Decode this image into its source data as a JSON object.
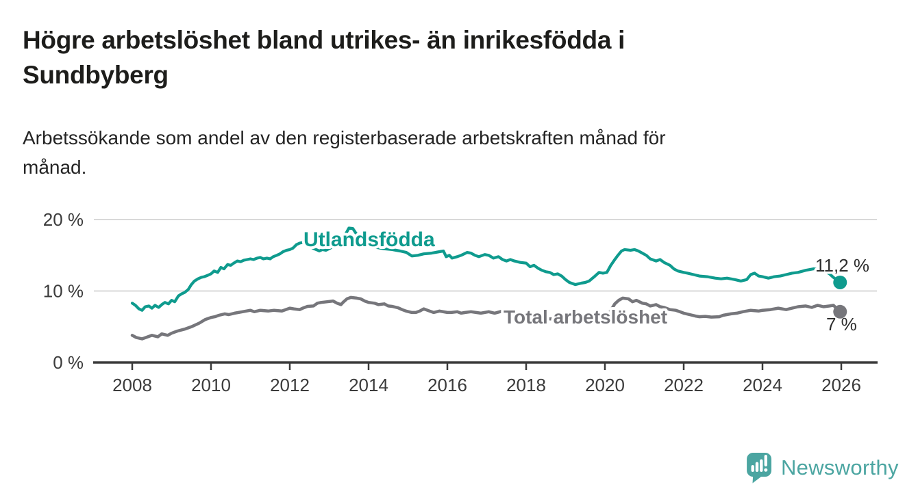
{
  "header": {
    "title_lines": [
      "Högre arbetslöshet bland utrikes- än inrikesfödda i",
      "Sundbyberg"
    ],
    "subtitle_lines": [
      "Arbetssökande som andel av den registerbaserade arbetskraften månad för",
      "månad."
    ]
  },
  "branding": {
    "wordmark": "Newsworthy",
    "logo_icon": "bar-chart-speech-bubble-icon",
    "logo_color": "#4ba5a1"
  },
  "chart_data": {
    "type": "line",
    "grid": "horizontal-only",
    "legend_position": "inline-labels-on-lines",
    "background": "#ffffff",
    "x_axis": {
      "range": [
        2007.0,
        2026.9
      ],
      "ticks": [
        2008,
        2010,
        2012,
        2014,
        2016,
        2018,
        2020,
        2022,
        2024,
        2026
      ],
      "tick_labels": [
        "2008",
        "2010",
        "2012",
        "2014",
        "2016",
        "2018",
        "2020",
        "2022",
        "2024",
        "2026"
      ],
      "axis_color": "#3b3b3b",
      "label_color": "#3b3b3b"
    },
    "y_axis": {
      "range": [
        0,
        21.5
      ],
      "unit": "%",
      "ticks": [
        20,
        10,
        0
      ],
      "tick_labels": [
        "20 %",
        "10 %",
        "0 %"
      ],
      "gridlines": [
        20,
        10
      ],
      "gridline_color": "#d9d9d9"
    },
    "series": [
      {
        "id": "total",
        "name": "Total arbetslöshet",
        "color": "#76767b",
        "end_label": "7 %",
        "end_value": 7.1,
        "points": [
          [
            2008.0,
            3.8
          ],
          [
            2008.1,
            3.5
          ],
          [
            2008.25,
            3.3
          ],
          [
            2008.4,
            3.6
          ],
          [
            2008.5,
            3.8
          ],
          [
            2008.65,
            3.6
          ],
          [
            2008.75,
            4.0
          ],
          [
            2008.9,
            3.8
          ],
          [
            2009.0,
            4.1
          ],
          [
            2009.15,
            4.4
          ],
          [
            2009.35,
            4.7
          ],
          [
            2009.5,
            5.0
          ],
          [
            2009.7,
            5.5
          ],
          [
            2009.85,
            6.0
          ],
          [
            2010.0,
            6.3
          ],
          [
            2010.1,
            6.4
          ],
          [
            2010.2,
            6.6
          ],
          [
            2010.35,
            6.8
          ],
          [
            2010.45,
            6.7
          ],
          [
            2010.6,
            6.9
          ],
          [
            2010.8,
            7.1
          ],
          [
            2011.0,
            7.3
          ],
          [
            2011.1,
            7.1
          ],
          [
            2011.25,
            7.3
          ],
          [
            2011.45,
            7.2
          ],
          [
            2011.6,
            7.3
          ],
          [
            2011.8,
            7.2
          ],
          [
            2012.0,
            7.6
          ],
          [
            2012.1,
            7.5
          ],
          [
            2012.25,
            7.4
          ],
          [
            2012.35,
            7.65
          ],
          [
            2012.45,
            7.85
          ],
          [
            2012.6,
            7.9
          ],
          [
            2012.7,
            8.3
          ],
          [
            2012.8,
            8.4
          ],
          [
            2012.95,
            8.5
          ],
          [
            2013.1,
            8.6
          ],
          [
            2013.2,
            8.3
          ],
          [
            2013.3,
            8.1
          ],
          [
            2013.35,
            8.4
          ],
          [
            2013.45,
            8.9
          ],
          [
            2013.55,
            9.1
          ],
          [
            2013.7,
            9.0
          ],
          [
            2013.8,
            8.9
          ],
          [
            2013.9,
            8.6
          ],
          [
            2014.0,
            8.4
          ],
          [
            2014.15,
            8.3
          ],
          [
            2014.25,
            8.1
          ],
          [
            2014.4,
            8.2
          ],
          [
            2014.5,
            7.9
          ],
          [
            2014.6,
            7.85
          ],
          [
            2014.75,
            7.65
          ],
          [
            2014.85,
            7.4
          ],
          [
            2014.95,
            7.2
          ],
          [
            2015.1,
            7.0
          ],
          [
            2015.2,
            7.0
          ],
          [
            2015.3,
            7.2
          ],
          [
            2015.4,
            7.5
          ],
          [
            2015.55,
            7.2
          ],
          [
            2015.65,
            7.0
          ],
          [
            2015.8,
            7.2
          ],
          [
            2016.0,
            7.0
          ],
          [
            2016.1,
            7.0
          ],
          [
            2016.25,
            7.1
          ],
          [
            2016.35,
            6.9
          ],
          [
            2016.45,
            7.0
          ],
          [
            2016.6,
            7.1
          ],
          [
            2016.85,
            6.9
          ],
          [
            2017.05,
            7.1
          ],
          [
            2017.2,
            6.9
          ],
          [
            2017.4,
            7.2
          ],
          [
            2017.5,
            6.9
          ],
          [
            2017.65,
            6.6
          ],
          [
            2017.8,
            6.4
          ],
          [
            2018.0,
            6.5
          ],
          [
            2018.3,
            6.3
          ],
          [
            2018.6,
            6.1
          ],
          [
            2018.9,
            6.0
          ],
          [
            2019.2,
            6.1
          ],
          [
            2019.5,
            6.1
          ],
          [
            2019.8,
            6.3
          ],
          [
            2020.0,
            6.5
          ],
          [
            2020.1,
            6.8
          ],
          [
            2020.25,
            8.2
          ],
          [
            2020.35,
            8.7
          ],
          [
            2020.45,
            9.0
          ],
          [
            2020.6,
            8.9
          ],
          [
            2020.7,
            8.5
          ],
          [
            2020.8,
            8.7
          ],
          [
            2020.95,
            8.3
          ],
          [
            2021.05,
            8.2
          ],
          [
            2021.15,
            7.9
          ],
          [
            2021.3,
            8.1
          ],
          [
            2021.4,
            7.8
          ],
          [
            2021.5,
            7.7
          ],
          [
            2021.65,
            7.4
          ],
          [
            2021.8,
            7.3
          ],
          [
            2021.9,
            7.1
          ],
          [
            2022.0,
            6.9
          ],
          [
            2022.15,
            6.7
          ],
          [
            2022.3,
            6.5
          ],
          [
            2022.4,
            6.4
          ],
          [
            2022.55,
            6.45
          ],
          [
            2022.7,
            6.35
          ],
          [
            2022.9,
            6.4
          ],
          [
            2023.0,
            6.6
          ],
          [
            2023.2,
            6.8
          ],
          [
            2023.35,
            6.9
          ],
          [
            2023.5,
            7.1
          ],
          [
            2023.7,
            7.3
          ],
          [
            2023.9,
            7.2
          ],
          [
            2024.0,
            7.3
          ],
          [
            2024.2,
            7.4
          ],
          [
            2024.4,
            7.6
          ],
          [
            2024.6,
            7.4
          ],
          [
            2024.75,
            7.6
          ],
          [
            2024.9,
            7.8
          ],
          [
            2025.1,
            7.9
          ],
          [
            2025.25,
            7.7
          ],
          [
            2025.4,
            8.0
          ],
          [
            2025.55,
            7.8
          ],
          [
            2025.7,
            7.9
          ],
          [
            2025.8,
            8.0
          ],
          [
            2025.97,
            7.1
          ]
        ]
      },
      {
        "id": "utlandsfodda",
        "name": "Utlandsfödda",
        "color": "#0f9b8e",
        "end_label": "11,2 %",
        "end_value": 11.2,
        "points": [
          [
            2008.0,
            8.3
          ],
          [
            2008.08,
            8.0
          ],
          [
            2008.17,
            7.5
          ],
          [
            2008.25,
            7.3
          ],
          [
            2008.33,
            7.8
          ],
          [
            2008.42,
            7.9
          ],
          [
            2008.5,
            7.6
          ],
          [
            2008.58,
            8.0
          ],
          [
            2008.67,
            7.7
          ],
          [
            2008.75,
            8.1
          ],
          [
            2008.83,
            8.4
          ],
          [
            2008.92,
            8.2
          ],
          [
            2009.0,
            8.7
          ],
          [
            2009.08,
            8.5
          ],
          [
            2009.17,
            9.3
          ],
          [
            2009.25,
            9.6
          ],
          [
            2009.33,
            9.8
          ],
          [
            2009.42,
            10.2
          ],
          [
            2009.5,
            10.9
          ],
          [
            2009.58,
            11.4
          ],
          [
            2009.67,
            11.7
          ],
          [
            2009.75,
            11.9
          ],
          [
            2009.83,
            12.0
          ],
          [
            2009.92,
            12.2
          ],
          [
            2010.0,
            12.4
          ],
          [
            2010.08,
            12.8
          ],
          [
            2010.17,
            12.6
          ],
          [
            2010.25,
            13.3
          ],
          [
            2010.33,
            13.1
          ],
          [
            2010.42,
            13.7
          ],
          [
            2010.5,
            13.6
          ],
          [
            2010.58,
            13.9
          ],
          [
            2010.67,
            14.2
          ],
          [
            2010.75,
            14.1
          ],
          [
            2010.83,
            14.3
          ],
          [
            2010.92,
            14.4
          ],
          [
            2011.0,
            14.5
          ],
          [
            2011.08,
            14.4
          ],
          [
            2011.17,
            14.6
          ],
          [
            2011.25,
            14.7
          ],
          [
            2011.33,
            14.5
          ],
          [
            2011.42,
            14.6
          ],
          [
            2011.5,
            14.5
          ],
          [
            2011.58,
            14.8
          ],
          [
            2011.67,
            15.0
          ],
          [
            2011.75,
            15.2
          ],
          [
            2011.83,
            15.5
          ],
          [
            2011.92,
            15.7
          ],
          [
            2012.0,
            15.8
          ],
          [
            2012.08,
            16.0
          ],
          [
            2012.17,
            16.5
          ],
          [
            2012.25,
            16.7
          ],
          [
            2012.33,
            16.8
          ],
          [
            2012.42,
            16.6
          ],
          [
            2012.5,
            16.3
          ],
          [
            2012.58,
            16.0
          ],
          [
            2012.67,
            15.8
          ],
          [
            2012.75,
            15.6
          ],
          [
            2012.83,
            15.8
          ],
          [
            2012.92,
            15.7
          ],
          [
            2013.1,
            16.2
          ],
          [
            2013.3,
            17.0
          ],
          [
            2013.42,
            18.0
          ],
          [
            2013.5,
            18.8
          ],
          [
            2013.6,
            18.75
          ],
          [
            2013.7,
            17.9
          ],
          [
            2013.85,
            16.9
          ],
          [
            2014.0,
            16.4
          ],
          [
            2014.2,
            16.1
          ],
          [
            2014.4,
            15.9
          ],
          [
            2014.6,
            15.8
          ],
          [
            2014.8,
            15.6
          ],
          [
            2014.96,
            15.4
          ],
          [
            2015.1,
            14.9
          ],
          [
            2015.25,
            15.0
          ],
          [
            2015.4,
            15.2
          ],
          [
            2015.6,
            15.3
          ],
          [
            2015.8,
            15.5
          ],
          [
            2015.9,
            15.6
          ],
          [
            2015.97,
            14.8
          ],
          [
            2016.05,
            15.0
          ],
          [
            2016.12,
            14.6
          ],
          [
            2016.25,
            14.8
          ],
          [
            2016.35,
            15.0
          ],
          [
            2016.5,
            15.4
          ],
          [
            2016.6,
            15.3
          ],
          [
            2016.7,
            15.0
          ],
          [
            2016.8,
            14.8
          ],
          [
            2016.95,
            15.1
          ],
          [
            2017.05,
            15.0
          ],
          [
            2017.17,
            14.6
          ],
          [
            2017.3,
            14.8
          ],
          [
            2017.4,
            14.4
          ],
          [
            2017.5,
            14.2
          ],
          [
            2017.6,
            14.4
          ],
          [
            2017.7,
            14.2
          ],
          [
            2017.85,
            14.0
          ],
          [
            2018.0,
            13.9
          ],
          [
            2018.1,
            13.4
          ],
          [
            2018.2,
            13.6
          ],
          [
            2018.3,
            13.2
          ],
          [
            2018.4,
            12.9
          ],
          [
            2018.5,
            12.7
          ],
          [
            2018.6,
            12.6
          ],
          [
            2018.7,
            12.3
          ],
          [
            2018.8,
            12.4
          ],
          [
            2018.9,
            12.1
          ],
          [
            2019.0,
            11.6
          ],
          [
            2019.1,
            11.2
          ],
          [
            2019.25,
            10.9
          ],
          [
            2019.4,
            11.1
          ],
          [
            2019.5,
            11.2
          ],
          [
            2019.6,
            11.4
          ],
          [
            2019.75,
            12.1
          ],
          [
            2019.85,
            12.6
          ],
          [
            2019.95,
            12.5
          ],
          [
            2020.05,
            12.6
          ],
          [
            2020.15,
            13.6
          ],
          [
            2020.25,
            14.4
          ],
          [
            2020.33,
            15.0
          ],
          [
            2020.42,
            15.6
          ],
          [
            2020.5,
            15.8
          ],
          [
            2020.65,
            15.7
          ],
          [
            2020.75,
            15.8
          ],
          [
            2020.85,
            15.6
          ],
          [
            2020.95,
            15.3
          ],
          [
            2021.05,
            15.0
          ],
          [
            2021.15,
            14.5
          ],
          [
            2021.3,
            14.2
          ],
          [
            2021.4,
            14.4
          ],
          [
            2021.5,
            14.0
          ],
          [
            2021.65,
            13.6
          ],
          [
            2021.75,
            13.1
          ],
          [
            2021.85,
            12.8
          ],
          [
            2022.0,
            12.6
          ],
          [
            2022.1,
            12.5
          ],
          [
            2022.25,
            12.3
          ],
          [
            2022.4,
            12.1
          ],
          [
            2022.6,
            12.0
          ],
          [
            2022.8,
            11.8
          ],
          [
            2022.95,
            11.7
          ],
          [
            2023.1,
            11.8
          ],
          [
            2023.3,
            11.6
          ],
          [
            2023.45,
            11.4
          ],
          [
            2023.6,
            11.6
          ],
          [
            2023.7,
            12.3
          ],
          [
            2023.8,
            12.5
          ],
          [
            2023.9,
            12.1
          ],
          [
            2024.0,
            12.0
          ],
          [
            2024.15,
            11.8
          ],
          [
            2024.3,
            12.0
          ],
          [
            2024.45,
            12.1
          ],
          [
            2024.6,
            12.3
          ],
          [
            2024.75,
            12.5
          ],
          [
            2024.9,
            12.6
          ],
          [
            2025.1,
            12.9
          ],
          [
            2025.3,
            13.1
          ],
          [
            2025.45,
            13.0
          ],
          [
            2025.55,
            12.9
          ],
          [
            2025.7,
            12.4
          ],
          [
            2025.8,
            11.9
          ],
          [
            2025.9,
            11.5
          ],
          [
            2025.97,
            11.2
          ]
        ]
      }
    ]
  }
}
